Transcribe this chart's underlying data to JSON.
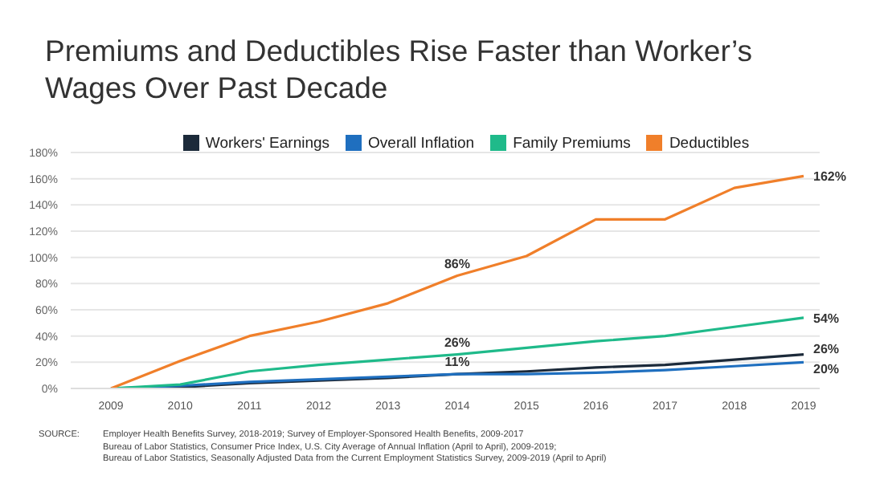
{
  "chart_data": {
    "type": "line",
    "title": "Premiums and Deductibles Rise Faster than Worker’s Wages Over Past Decade",
    "categories": [
      "2009",
      "2010",
      "2011",
      "2012",
      "2013",
      "2014",
      "2015",
      "2016",
      "2017",
      "2018",
      "2019"
    ],
    "series": [
      {
        "name": "Workers' Earnings",
        "color": "#1c2a3a",
        "values": [
          0,
          1,
          4,
          6,
          8,
          11,
          13,
          16,
          18,
          22,
          26
        ],
        "value_labels": [
          null,
          null,
          null,
          null,
          null,
          null,
          null,
          null,
          null,
          null,
          "26%"
        ]
      },
      {
        "name": "Overall Inflation",
        "color": "#1f6fbf",
        "values": [
          0,
          2,
          5,
          7,
          9,
          11,
          11,
          12,
          14,
          17,
          20
        ],
        "value_labels": [
          null,
          null,
          null,
          null,
          null,
          "11%",
          null,
          null,
          null,
          null,
          "20%"
        ]
      },
      {
        "name": "Family Premiums",
        "color": "#1fba8a",
        "values": [
          0,
          3,
          13,
          18,
          22,
          26,
          31,
          36,
          40,
          47,
          54
        ],
        "value_labels": [
          null,
          null,
          null,
          null,
          null,
          "26%",
          null,
          null,
          null,
          null,
          "54%"
        ]
      },
      {
        "name": "Deductibles",
        "color": "#f07f2a",
        "values": [
          0,
          21,
          40,
          51,
          65,
          86,
          101,
          129,
          129,
          153,
          162
        ],
        "value_labels": [
          null,
          null,
          null,
          null,
          null,
          "86%",
          null,
          null,
          null,
          null,
          "162%"
        ]
      }
    ],
    "ylim": [
      0,
      180
    ],
    "yticks": [
      {
        "value": 0,
        "label": "0%"
      },
      {
        "value": 20,
        "label": "20%"
      },
      {
        "value": 40,
        "label": "40%"
      },
      {
        "value": 60,
        "label": "60%"
      },
      {
        "value": 80,
        "label": "80%"
      },
      {
        "value": 100,
        "label": "100%"
      },
      {
        "value": 120,
        "label": "120%"
      },
      {
        "value": 140,
        "label": "140%"
      },
      {
        "value": 160,
        "label": "160%"
      },
      {
        "value": 180,
        "label": "180%"
      }
    ],
    "grid": "y",
    "legend": "top",
    "marker": "none",
    "line_style": "solid",
    "annotations": [
      "SOURCE:",
      "Employer Health Benefits Survey, 2018-2019; Survey of Employer-Sponsored Health Benefits, 2009-2017",
      "Bureau of Labor Statistics, Consumer Price Index, U.S. City Average of Annual Inflation (April to April), 2009-2019;",
      "Bureau of Labor Statistics, Seasonally Adjusted Data from the Current Employment Statistics Survey, 2009-2019 (April to April)"
    ]
  }
}
